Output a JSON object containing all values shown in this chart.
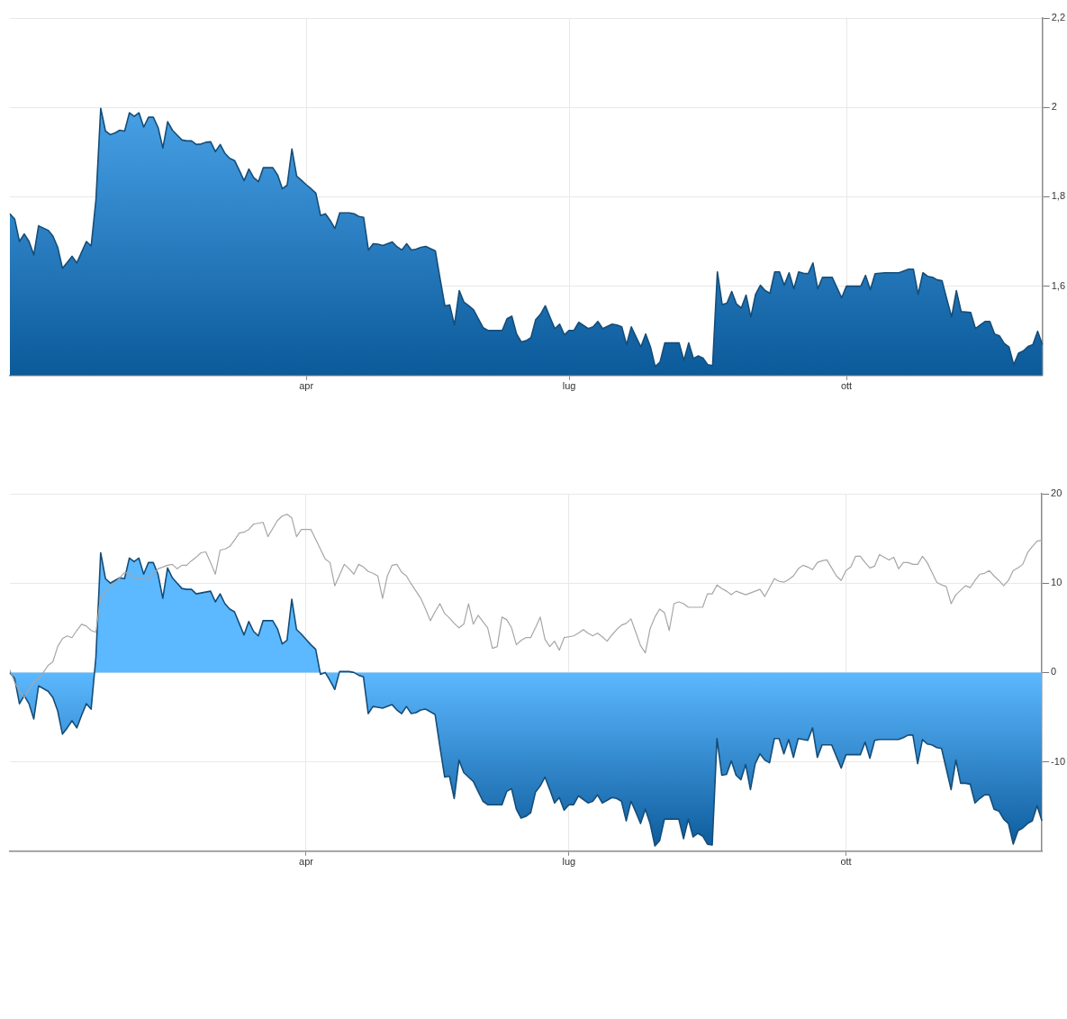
{
  "chart_data": [
    {
      "type": "area",
      "color": "#0b5a9a",
      "grid": true,
      "categories": [
        null,
        null,
        null,
        null,
        null,
        null,
        null,
        null,
        null,
        null,
        null,
        null,
        null,
        null,
        null,
        null,
        null,
        null,
        null,
        null,
        null,
        null,
        null,
        null,
        null,
        null,
        null,
        null,
        null,
        null,
        null,
        null,
        null,
        null,
        null,
        null,
        null,
        null,
        null,
        null,
        null,
        null,
        null,
        null,
        null,
        null,
        null,
        null,
        null,
        null,
        null,
        null,
        null,
        null,
        null,
        null,
        null,
        null,
        null,
        null,
        null,
        null,
        "apr",
        null,
        null,
        null,
        null,
        null,
        null,
        null,
        null,
        null,
        null,
        null,
        null,
        null,
        null,
        null,
        null,
        null,
        null,
        null,
        null,
        null,
        null,
        null,
        null,
        null,
        null,
        null,
        null,
        null,
        null,
        null,
        null,
        null,
        null,
        null,
        null,
        null,
        null,
        null,
        null,
        null,
        null,
        null,
        null,
        null,
        null,
        null,
        null,
        null,
        null,
        null,
        null,
        null,
        null,
        "lug",
        null,
        null,
        null,
        null,
        null,
        null,
        null,
        null,
        null,
        null,
        null,
        null,
        null,
        null,
        null,
        null,
        null,
        null,
        null,
        null,
        null,
        null,
        null,
        null,
        null,
        null,
        null,
        null,
        null,
        null,
        null,
        null,
        null,
        null,
        null,
        null,
        null,
        null,
        null,
        null,
        null,
        null,
        null,
        null,
        null,
        null,
        null,
        null,
        null,
        null,
        null,
        null,
        null,
        null,
        null,
        null,
        null,
        "ott",
        null,
        null,
        null,
        null,
        null,
        null,
        null,
        null,
        null,
        null,
        null,
        null,
        null,
        null,
        null,
        null,
        null,
        null,
        null,
        null,
        null,
        null,
        null,
        null,
        null,
        null,
        null,
        null,
        null,
        null,
        null,
        null,
        null,
        null,
        null,
        null,
        null,
        null,
        null,
        null,
        null
      ],
      "ylim": [
        1.4,
        2.2
      ],
      "yticks": [
        {
          "value": 1.6,
          "label": "1,6"
        },
        {
          "value": 1.8,
          "label": "1,8"
        },
        2,
        {
          "value": 2.2,
          "label": "2,2"
        }
      ],
      "values": [
        1.762,
        1.75,
        1.7,
        1.717,
        1.7,
        1.67,
        1.735,
        1.73,
        1.725,
        1.712,
        1.687,
        1.64,
        1.653,
        1.667,
        1.652,
        1.676,
        1.7,
        1.69,
        1.793,
        1.998,
        1.947,
        1.939,
        1.943,
        1.949,
        1.947,
        1.988,
        1.98,
        1.988,
        1.956,
        1.978,
        1.978,
        1.955,
        1.909,
        1.968,
        1.949,
        1.938,
        1.927,
        1.925,
        1.925,
        1.917,
        1.918,
        1.922,
        1.923,
        1.901,
        1.917,
        1.897,
        1.886,
        1.881,
        1.859,
        1.836,
        1.862,
        1.843,
        1.834,
        1.865,
        1.865,
        1.865,
        1.849,
        1.818,
        1.826,
        1.907,
        1.846,
        1.837,
        1.827,
        1.818,
        1.808,
        1.758,
        1.762,
        1.747,
        1.729,
        1.764,
        1.764,
        1.764,
        1.762,
        1.756,
        1.754,
        1.681,
        1.695,
        1.694,
        1.691,
        1.695,
        1.699,
        1.688,
        1.681,
        1.695,
        1.681,
        1.683,
        1.687,
        1.689,
        1.684,
        1.679,
        1.616,
        1.556,
        1.558,
        1.513,
        1.59,
        1.564,
        1.556,
        1.547,
        1.527,
        1.507,
        1.501,
        1.501,
        1.501,
        1.501,
        1.527,
        1.533,
        1.493,
        1.475,
        1.478,
        1.485,
        1.525,
        1.537,
        1.556,
        1.53,
        1.505,
        1.515,
        1.491,
        1.501,
        1.501,
        1.519,
        1.512,
        1.505,
        1.509,
        1.521,
        1.505,
        1.51,
        1.515,
        1.513,
        1.509,
        1.469,
        1.509,
        1.486,
        1.464,
        1.493,
        1.464,
        1.42,
        1.43,
        1.473,
        1.473,
        1.473,
        1.473,
        1.434,
        1.473,
        1.438,
        1.444,
        1.439,
        1.424,
        1.422,
        1.632,
        1.559,
        1.562,
        1.588,
        1.56,
        1.551,
        1.58,
        1.531,
        1.582,
        1.602,
        1.59,
        1.584,
        1.632,
        1.632,
        1.602,
        1.63,
        1.594,
        1.632,
        1.629,
        1.628,
        1.652,
        1.594,
        1.62,
        1.62,
        1.62,
        1.597,
        1.574,
        1.6,
        1.6,
        1.6,
        1.6,
        1.624,
        1.592,
        1.628,
        1.629,
        1.63,
        1.63,
        1.63,
        1.63,
        1.634,
        1.638,
        1.638,
        1.582,
        1.63,
        1.622,
        1.62,
        1.614,
        1.612,
        1.571,
        1.531,
        1.59,
        1.543,
        1.542,
        1.541,
        1.505,
        1.513,
        1.521,
        1.521,
        1.493,
        1.489,
        1.472,
        1.464,
        1.424,
        1.45,
        1.455,
        1.465,
        1.469,
        1.499,
        1.469
      ]
    },
    {
      "type": "area",
      "grid": true,
      "categories": [
        null,
        null,
        null,
        null,
        null,
        null,
        null,
        null,
        null,
        null,
        null,
        null,
        null,
        null,
        null,
        null,
        null,
        null,
        null,
        null,
        null,
        null,
        null,
        null,
        null,
        null,
        null,
        null,
        null,
        null,
        null,
        null,
        null,
        null,
        null,
        null,
        null,
        null,
        null,
        null,
        null,
        null,
        null,
        null,
        null,
        null,
        null,
        null,
        null,
        null,
        null,
        null,
        null,
        null,
        null,
        null,
        null,
        null,
        null,
        null,
        null,
        null,
        "apr",
        null,
        null,
        null,
        null,
        null,
        null,
        null,
        null,
        null,
        null,
        null,
        null,
        null,
        null,
        null,
        null,
        null,
        null,
        null,
        null,
        null,
        null,
        null,
        null,
        null,
        null,
        null,
        null,
        null,
        null,
        null,
        null,
        null,
        null,
        null,
        null,
        null,
        null,
        null,
        null,
        null,
        null,
        null,
        null,
        null,
        null,
        null,
        null,
        null,
        null,
        null,
        null,
        null,
        null,
        "lug",
        null,
        null,
        null,
        null,
        null,
        null,
        null,
        null,
        null,
        null,
        null,
        null,
        null,
        null,
        null,
        null,
        null,
        null,
        null,
        null,
        null,
        null,
        null,
        null,
        null,
        null,
        null,
        null,
        null,
        null,
        null,
        null,
        null,
        null,
        null,
        null,
        null,
        null,
        null,
        null,
        null,
        null,
        null,
        null,
        null,
        null,
        null,
        null,
        null,
        null,
        null,
        null,
        null,
        null,
        null,
        null,
        null,
        "ott",
        null,
        null,
        null,
        null,
        null,
        null,
        null,
        null,
        null,
        null,
        null,
        null,
        null,
        null,
        null,
        null,
        null,
        null,
        null,
        null,
        null,
        null,
        null,
        null,
        null,
        null,
        null,
        null,
        null,
        null,
        null,
        null,
        null,
        null,
        null,
        null,
        null,
        null,
        null,
        null,
        null
      ],
      "ylim": [
        -20,
        20
      ],
      "yticks": [
        -10,
        0,
        10,
        20
      ],
      "series": [
        {
          "color": "#0b5a9a",
          "values": [
            0.0,
            -0.7,
            -3.5,
            -2.6,
            -3.5,
            -5.2,
            -1.5,
            -1.8,
            -2.1,
            -2.8,
            -4.3,
            -6.9,
            -6.2,
            -5.4,
            -6.2,
            -4.8,
            -3.5,
            -4.1,
            1.7,
            13.4,
            10.5,
            10.0,
            10.3,
            10.6,
            10.5,
            12.8,
            12.4,
            12.8,
            11.0,
            12.3,
            12.3,
            11.0,
            8.3,
            11.7,
            10.6,
            10.0,
            9.4,
            9.3,
            9.3,
            8.8,
            8.9,
            9.0,
            9.1,
            7.9,
            8.8,
            7.7,
            7.1,
            6.8,
            5.5,
            4.2,
            5.7,
            4.6,
            4.1,
            5.8,
            5.8,
            5.8,
            4.9,
            3.2,
            3.6,
            8.2,
            4.8,
            4.3,
            3.7,
            3.1,
            2.6,
            -0.2,
            0.0,
            -0.9,
            -1.9,
            0.1,
            0.1,
            0.1,
            0.0,
            -0.3,
            -0.5,
            -4.6,
            -3.8,
            -3.9,
            -4.0,
            -3.8,
            -3.6,
            -4.2,
            -4.6,
            -3.8,
            -4.6,
            -4.5,
            -4.2,
            -4.1,
            -4.4,
            -4.7,
            -8.3,
            -11.7,
            -11.6,
            -14.1,
            -9.8,
            -11.2,
            -11.7,
            -12.2,
            -13.3,
            -14.4,
            -14.8,
            -14.8,
            -14.8,
            -14.8,
            -13.3,
            -13.0,
            -15.3,
            -16.3,
            -16.1,
            -15.7,
            -13.4,
            -12.7,
            -11.7,
            -13.1,
            -14.6,
            -14.0,
            -15.4,
            -14.8,
            -14.8,
            -13.8,
            -14.2,
            -14.6,
            -14.4,
            -13.7,
            -14.6,
            -14.3,
            -14.0,
            -14.1,
            -14.4,
            -16.6,
            -14.4,
            -15.6,
            -16.9,
            -15.3,
            -16.9,
            -19.4,
            -18.8,
            -16.4,
            -16.4,
            -16.4,
            -16.4,
            -18.6,
            -16.4,
            -18.4,
            -18.0,
            -18.3,
            -19.2,
            -19.3,
            -7.4,
            -11.5,
            -11.4,
            -9.9,
            -11.5,
            -12.0,
            -10.3,
            -13.1,
            -10.2,
            -9.1,
            -9.8,
            -10.1,
            -7.4,
            -7.4,
            -9.1,
            -7.5,
            -9.5,
            -7.4,
            -7.5,
            -7.6,
            -6.2,
            -9.5,
            -8.1,
            -8.1,
            -8.1,
            -9.4,
            -10.7,
            -9.2,
            -9.2,
            -9.2,
            -9.2,
            -7.8,
            -9.6,
            -7.6,
            -7.5,
            -7.5,
            -7.5,
            -7.5,
            -7.5,
            -7.3,
            -7.0,
            -7.0,
            -10.2,
            -7.5,
            -8.0,
            -8.1,
            -8.4,
            -8.5,
            -10.8,
            -13.1,
            -9.8,
            -12.4,
            -12.4,
            -12.5,
            -14.6,
            -14.1,
            -13.7,
            -13.7,
            -15.3,
            -15.5,
            -16.4,
            -16.9,
            -19.2,
            -17.7,
            -17.4,
            -16.9,
            -16.6,
            -14.9,
            -16.6
          ]
        },
        {
          "type": "line",
          "color": "#a6a6a6",
          "values": [
            0.3,
            -1.1,
            -2.1,
            -2.8,
            -1.9,
            -1.1,
            -0.7,
            0.0,
            0.8,
            1.2,
            2.9,
            3.8,
            4.1,
            3.9,
            4.7,
            5.4,
            5.2,
            4.7,
            4.5,
            8.5,
            9.1,
            9.7,
            10.0,
            10.6,
            11.2,
            11.1,
            10.6,
            10.5,
            10.5,
            10.4,
            11.0,
            11.6,
            11.8,
            12.0,
            12.1,
            11.6,
            12.0,
            12.0,
            12.5,
            12.9,
            13.4,
            13.5,
            12.3,
            11.0,
            13.7,
            13.8,
            14.1,
            14.8,
            15.6,
            15.7,
            16.0,
            16.6,
            16.7,
            16.8,
            15.2,
            16.1,
            17.0,
            17.5,
            17.7,
            17.3,
            15.2,
            16.0,
            16.0,
            16.0,
            14.9,
            13.8,
            12.7,
            12.3,
            9.7,
            10.9,
            12.1,
            11.6,
            11.0,
            12.1,
            11.8,
            11.3,
            11.1,
            10.8,
            8.3,
            10.8,
            12.0,
            12.1,
            11.2,
            10.8,
            9.9,
            9.1,
            8.3,
            7.1,
            5.8,
            6.8,
            7.7,
            6.6,
            6.1,
            5.5,
            5.0,
            5.4,
            7.7,
            5.4,
            6.4,
            5.7,
            5.0,
            2.7,
            2.9,
            6.2,
            5.9,
            5.0,
            3.1,
            3.6,
            3.9,
            3.9,
            5.0,
            6.2,
            3.7,
            2.9,
            3.5,
            2.5,
            3.9,
            4.0,
            4.1,
            4.4,
            4.8,
            4.4,
            4.1,
            4.4,
            4.0,
            3.5,
            4.2,
            4.8,
            5.3,
            5.5,
            6.0,
            4.5,
            3.0,
            2.2,
            4.9,
            6.2,
            7.1,
            6.7,
            4.7,
            7.7,
            7.9,
            7.7,
            7.3,
            7.3,
            7.3,
            7.3,
            8.8,
            8.8,
            9.8,
            9.4,
            9.1,
            8.7,
            9.1,
            8.9,
            8.7,
            8.9,
            9.1,
            9.3,
            8.5,
            9.5,
            10.5,
            10.2,
            10.1,
            10.4,
            10.8,
            11.6,
            12.0,
            11.8,
            11.5,
            12.3,
            12.5,
            12.6,
            11.7,
            10.8,
            10.3,
            11.4,
            11.8,
            13.0,
            13.0,
            12.3,
            11.7,
            11.9,
            13.2,
            12.9,
            12.6,
            12.9,
            11.6,
            12.3,
            12.3,
            12.1,
            12.1,
            13.0,
            12.3,
            11.2,
            10.1,
            9.8,
            9.6,
            7.7,
            8.7,
            9.2,
            9.7,
            9.5,
            10.3,
            11.0,
            11.1,
            11.4,
            10.8,
            10.3,
            9.7,
            10.3,
            11.4,
            11.7,
            12.1,
            13.4,
            14.1,
            14.7,
            14.8
          ]
        }
      ]
    }
  ]
}
